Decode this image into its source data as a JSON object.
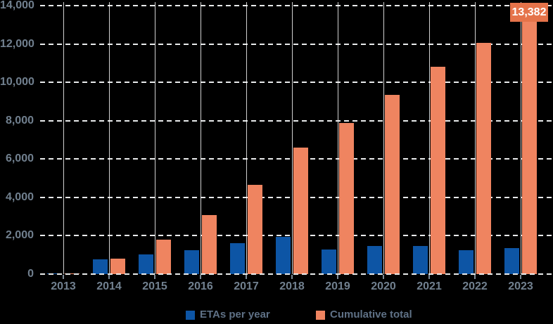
{
  "chart_data": {
    "type": "bar",
    "title": "",
    "categories": [
      "2013",
      "2014",
      "2015",
      "2016",
      "2017",
      "2018",
      "2019",
      "2020",
      "2021",
      "2022",
      "2023"
    ],
    "series": [
      {
        "name": "ETAs per year",
        "color": "#0d55a5",
        "values": [
          31,
          760,
          1020,
          1250,
          1600,
          1930,
          1290,
          1480,
          1450,
          1230,
          1341
        ]
      },
      {
        "name": "Cumulative total",
        "color": "#ef8460",
        "values": [
          31,
          791,
          1811,
          3061,
          4661,
          6591,
          7881,
          9361,
          10811,
          12041,
          13382
        ]
      }
    ],
    "xlabel": "",
    "ylabel": "",
    "ylim": [
      0,
      14000
    ],
    "ytick_values": [
      0,
      2000,
      4000,
      6000,
      8000,
      10000,
      12000,
      14000
    ],
    "ytick_labels": [
      "0",
      "2,000",
      "4,000",
      "6,000",
      "8,000",
      "10,000",
      "12,000",
      "14,000"
    ],
    "grid": {
      "horizontal": "dashed",
      "vertical": "solid"
    },
    "legend_position": "bottom",
    "annotation": {
      "text": "13,382",
      "series": "Cumulative total",
      "category": "2023",
      "box_color": "#e5734a",
      "text_color": "#ffffff"
    }
  },
  "colors": {
    "background": "#000000",
    "axis_text": "#71808f",
    "legend_text": "#5f7186",
    "gridline_dash": "#e9ebec",
    "gridline_vertical": "#d0d4d7",
    "bar_blue": "#0d55a5",
    "bar_orange": "#ef8460"
  }
}
